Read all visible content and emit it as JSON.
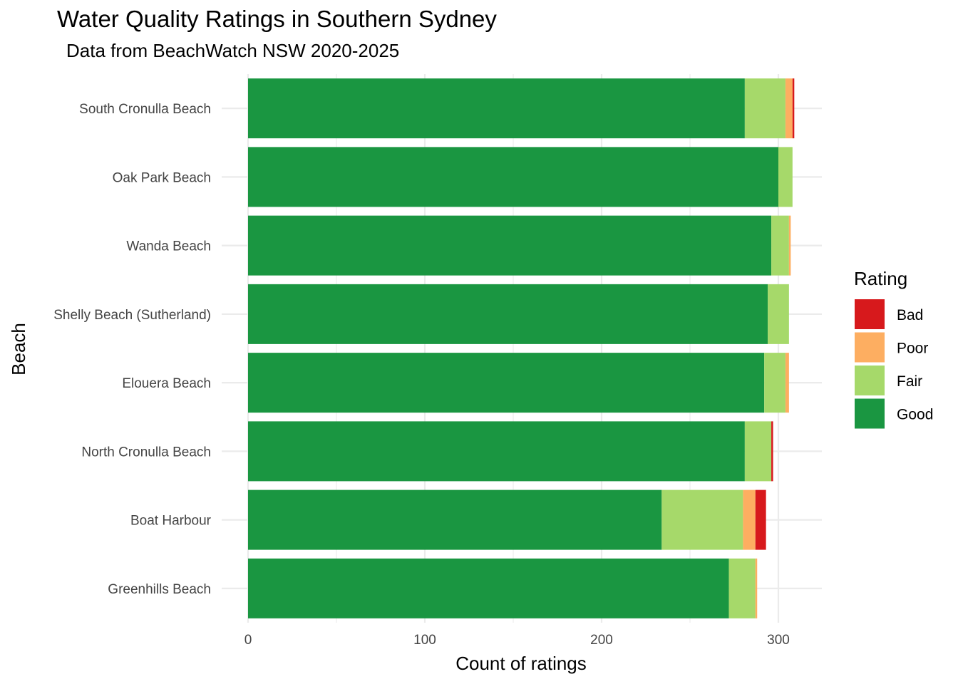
{
  "chart_data": {
    "type": "bar",
    "orientation": "horizontal",
    "stacked": true,
    "title": "Water Quality Ratings in Southern Sydney",
    "subtitle": "Data from BeachWatch NSW 2020-2025",
    "xlabel": "Count of ratings",
    "ylabel": "Beach",
    "xlim": [
      0,
      325
    ],
    "xticks": [
      0,
      100,
      200,
      300
    ],
    "grid": true,
    "legend": {
      "title": "Rating",
      "placement": "right"
    },
    "categories": [
      "South Cronulla Beach",
      "Oak Park Beach",
      "Wanda Beach",
      "Shelly Beach (Sutherland)",
      "Elouera Beach",
      "North Cronulla Beach",
      "Boat Harbour",
      "Greenhills Beach"
    ],
    "series": [
      {
        "name": "Good",
        "color": "#1a9641",
        "values": [
          281,
          300,
          296,
          294,
          292,
          281,
          234,
          272
        ]
      },
      {
        "name": "Fair",
        "color": "#a6d96a",
        "values": [
          23,
          8,
          10,
          12,
          12,
          15,
          46,
          15
        ]
      },
      {
        "name": "Poor",
        "color": "#fdae61",
        "values": [
          4,
          0,
          1,
          0,
          2,
          0,
          7,
          1
        ]
      },
      {
        "name": "Bad",
        "color": "#d7191c",
        "values": [
          1,
          0,
          0,
          0,
          0,
          1,
          6,
          0
        ]
      }
    ],
    "legend_order": [
      "Bad",
      "Poor",
      "Fair",
      "Good"
    ]
  }
}
